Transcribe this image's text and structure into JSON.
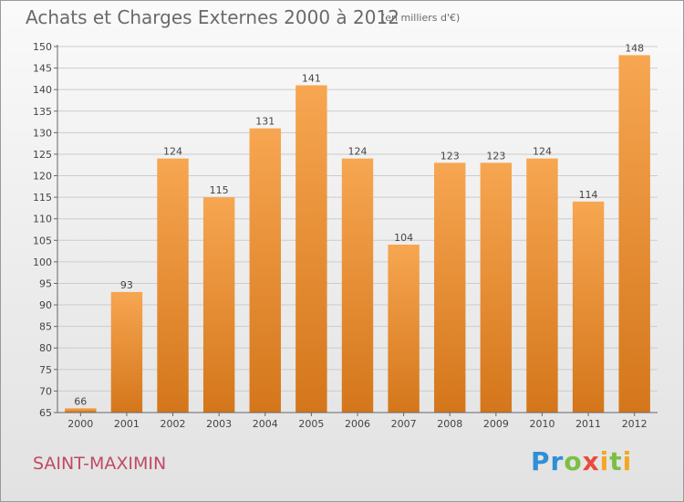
{
  "colors": {
    "bar_top": "#f7a651",
    "bar_bottom": "#d4761b",
    "grid": "#cccccc",
    "axis": "#666666"
  },
  "logo": {
    "text": "Proxiti"
  },
  "chart_data": {
    "type": "bar",
    "title": "Achats et Charges Externes 2000 à 2012",
    "subtitle": "(en milliers d'€)",
    "location": "SAINT-MAXIMIN",
    "categories": [
      "2000",
      "2001",
      "2002",
      "2003",
      "2004",
      "2005",
      "2006",
      "2007",
      "2008",
      "2009",
      "2010",
      "2011",
      "2012"
    ],
    "values": [
      66,
      93,
      124,
      115,
      131,
      141,
      124,
      104,
      123,
      123,
      124,
      114,
      148
    ],
    "ylim": [
      65,
      150
    ],
    "yticks": [
      65,
      70,
      75,
      80,
      85,
      90,
      95,
      100,
      105,
      110,
      115,
      120,
      125,
      130,
      135,
      140,
      145,
      150
    ],
    "grid": true,
    "xlabel": "",
    "ylabel": ""
  }
}
